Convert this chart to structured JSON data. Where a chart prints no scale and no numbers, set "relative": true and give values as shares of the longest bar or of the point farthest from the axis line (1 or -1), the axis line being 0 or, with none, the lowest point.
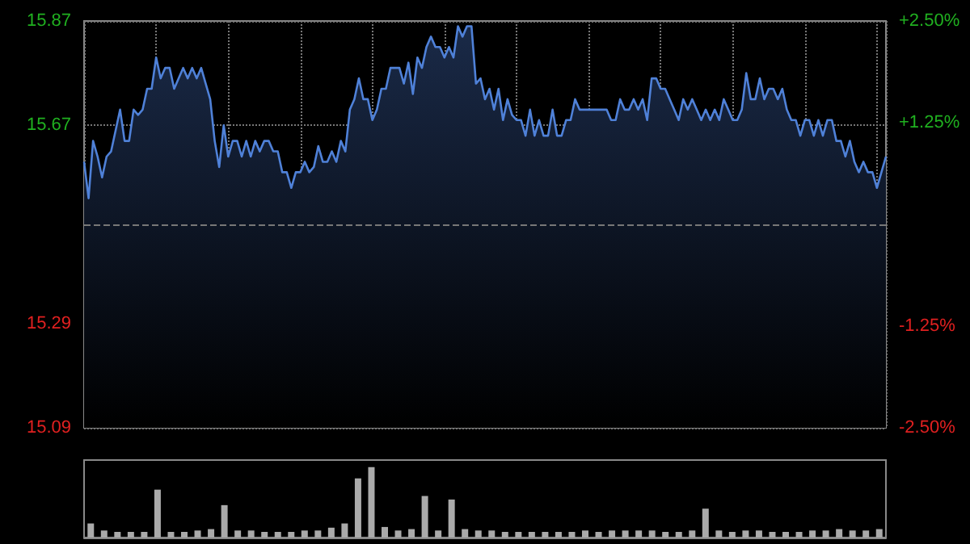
{
  "chart_data": [
    {
      "type": "area",
      "tick_labels": "y",
      "grid": true,
      "line_style": "solid",
      "ylim": [
        15.09,
        15.87
      ],
      "yticks": [
        15.09,
        15.29,
        15.67,
        15.87
      ],
      "y2lim": [
        -2.5,
        2.5
      ],
      "y2ticks": [
        {
          "value": -2.5,
          "label": "-2.50%"
        },
        {
          "value": -1.25,
          "label": "-1.25%"
        },
        {
          "value": 1.25,
          "label": "+1.25%"
        },
        {
          "value": 2.5,
          "label": "+2.50%"
        }
      ],
      "ref_lines": [
        {
          "axis": "y",
          "value": 15.48,
          "line_style": "dashed",
          "color": "#777777"
        }
      ],
      "categories": [
        null,
        null,
        null,
        null,
        null,
        null,
        null,
        null,
        null,
        null,
        null,
        null,
        null,
        null,
        null,
        null,
        null,
        null,
        null,
        null,
        null,
        null,
        null,
        null,
        null,
        null,
        null,
        null,
        null,
        null,
        null,
        null,
        null,
        null,
        null,
        null,
        null,
        null,
        null,
        null,
        null,
        null,
        null,
        null,
        null,
        null,
        null,
        null,
        null,
        null,
        null,
        null,
        null,
        null,
        null,
        null,
        null,
        null,
        null,
        null,
        null,
        null,
        null,
        null,
        null,
        null,
        null,
        null,
        null,
        null,
        null,
        null,
        null,
        null,
        null,
        null,
        null,
        null,
        null,
        null,
        null,
        null,
        null,
        null,
        null,
        null,
        null,
        null,
        null,
        null,
        null,
        null,
        null,
        null,
        null,
        null,
        null,
        null,
        null,
        null,
        null,
        null,
        null,
        null,
        null,
        null,
        null,
        null,
        null,
        null,
        null,
        null,
        null,
        null,
        null,
        null,
        null,
        null,
        null,
        null,
        null,
        null,
        null,
        null,
        null,
        null,
        null,
        null,
        null,
        null,
        null,
        null,
        null,
        null,
        null,
        null,
        null,
        null,
        null,
        null,
        null,
        null,
        null,
        null,
        null,
        null,
        null,
        null,
        null,
        null,
        null,
        null,
        null,
        null,
        null,
        null,
        null,
        null,
        null,
        null,
        null,
        null,
        null,
        null,
        null,
        null,
        null,
        null,
        null,
        null,
        null,
        null,
        null,
        null,
        null,
        null,
        null,
        null,
        null
      ],
      "series": [
        {
          "color": "#4f81d8",
          "values": [
            15.6,
            15.53,
            15.64,
            15.61,
            15.57,
            15.61,
            15.62,
            15.66,
            15.7,
            15.64,
            15.64,
            15.7,
            15.69,
            15.7,
            15.74,
            15.74,
            15.8,
            15.76,
            15.78,
            15.78,
            15.74,
            15.76,
            15.78,
            15.76,
            15.78,
            15.76,
            15.78,
            15.75,
            15.72,
            15.64,
            15.59,
            15.67,
            15.61,
            15.64,
            15.64,
            15.61,
            15.64,
            15.61,
            15.64,
            15.62,
            15.64,
            15.64,
            15.62,
            15.62,
            15.58,
            15.58,
            15.55,
            15.58,
            15.58,
            15.6,
            15.58,
            15.59,
            15.63,
            15.6,
            15.6,
            15.62,
            15.6,
            15.64,
            15.62,
            15.7,
            15.72,
            15.76,
            15.72,
            15.72,
            15.68,
            15.7,
            15.74,
            15.74,
            15.78,
            15.78,
            15.78,
            15.75,
            15.79,
            15.73,
            15.8,
            15.78,
            15.82,
            15.84,
            15.82,
            15.82,
            15.8,
            15.82,
            15.8,
            15.86,
            15.84,
            15.86,
            15.86,
            15.75,
            15.76,
            15.72,
            15.74,
            15.7,
            15.74,
            15.68,
            15.72,
            15.69,
            15.68,
            15.68,
            15.65,
            15.7,
            15.65,
            15.68,
            15.65,
            15.65,
            15.7,
            15.65,
            15.65,
            15.68,
            15.68,
            15.72,
            15.7,
            15.7,
            15.7,
            15.7,
            15.7,
            15.7,
            15.7,
            15.68,
            15.68,
            15.72,
            15.7,
            15.7,
            15.72,
            15.7,
            15.72,
            15.68,
            15.76,
            15.76,
            15.74,
            15.74,
            15.72,
            15.7,
            15.68,
            15.72,
            15.7,
            15.72,
            15.7,
            15.68,
            15.7,
            15.68,
            15.7,
            15.68,
            15.72,
            15.7,
            15.68,
            15.68,
            15.7,
            15.77,
            15.72,
            15.72,
            15.76,
            15.72,
            15.74,
            15.74,
            15.72,
            15.74,
            15.7,
            15.68,
            15.68,
            15.65,
            15.68,
            15.68,
            15.65,
            15.68,
            15.65,
            15.68,
            15.68,
            15.64,
            15.64,
            15.61,
            15.64,
            15.6,
            15.58,
            15.6,
            15.58,
            15.58,
            15.55,
            15.58,
            15.61
          ]
        }
      ]
    },
    {
      "type": "bar",
      "relative": true,
      "tick_labels": false,
      "categories": [
        null,
        null,
        null,
        null,
        null,
        null,
        null,
        null,
        null,
        null,
        null,
        null,
        null,
        null,
        null,
        null,
        null,
        null,
        null,
        null,
        null,
        null,
        null,
        null,
        null,
        null,
        null,
        null,
        null,
        null,
        null,
        null,
        null,
        null,
        null,
        null,
        null,
        null,
        null,
        null,
        null,
        null,
        null,
        null,
        null,
        null,
        null,
        null,
        null,
        null,
        null,
        null,
        null,
        null,
        null,
        null,
        null,
        null,
        null,
        null
      ],
      "series": [
        {
          "color": "#aaaaaa",
          "values": [
            0.2,
            0.1,
            0.08,
            0.08,
            0.08,
            0.68,
            0.08,
            0.08,
            0.1,
            0.12,
            0.46,
            0.1,
            0.1,
            0.08,
            0.08,
            0.08,
            0.1,
            0.1,
            0.14,
            0.2,
            0.84,
            1,
            0.15,
            0.1,
            0.12,
            0.59,
            0.1,
            0.54,
            0.12,
            0.1,
            0.1,
            0.08,
            0.08,
            0.08,
            0.08,
            0.08,
            0.08,
            0.1,
            0.08,
            0.1,
            0.1,
            0.1,
            0.1,
            0.08,
            0.08,
            0.1,
            0.41,
            0.1,
            0.08,
            0.1,
            0.1,
            0.08,
            0.08,
            0.08,
            0.1,
            0.1,
            0.12,
            0.1,
            0.1,
            0.12
          ]
        }
      ]
    }
  ]
}
